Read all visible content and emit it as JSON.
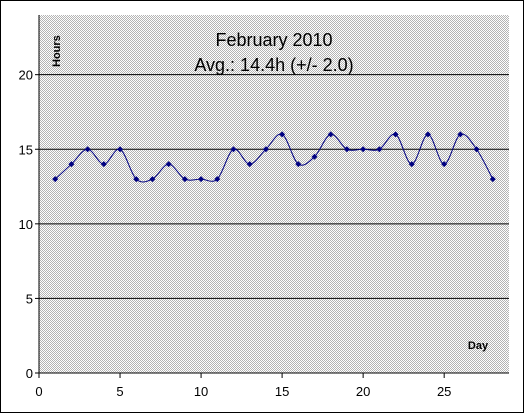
{
  "chart_data": {
    "type": "line",
    "title": "February 2010",
    "subtitle": "Avg.: 14.4h (+/- 2.0)",
    "xlabel": "Day",
    "ylabel": "Hours",
    "xlim": [
      0,
      29
    ],
    "ylim": [
      0,
      24
    ],
    "x_ticks": [
      0,
      5,
      10,
      15,
      20,
      25
    ],
    "y_ticks": [
      0,
      5,
      10,
      15,
      20
    ],
    "grid": "horizontal major lines",
    "series": [
      {
        "x": [
          1,
          2,
          3,
          4,
          5,
          6,
          7,
          8,
          9,
          10,
          11,
          12,
          13,
          14,
          15,
          16,
          17,
          18,
          19,
          20,
          21,
          22,
          23,
          24,
          25,
          26,
          27,
          28
        ],
        "values": [
          13,
          14,
          15,
          14,
          15,
          13,
          13,
          14,
          13,
          13,
          13,
          15,
          14,
          15,
          16,
          14,
          14.5,
          16,
          15,
          15,
          15,
          16,
          14,
          16,
          14,
          16,
          15,
          13
        ],
        "color": "#000080"
      }
    ],
    "plot_background": "#c0c0c0",
    "line_style": "smoothed"
  }
}
